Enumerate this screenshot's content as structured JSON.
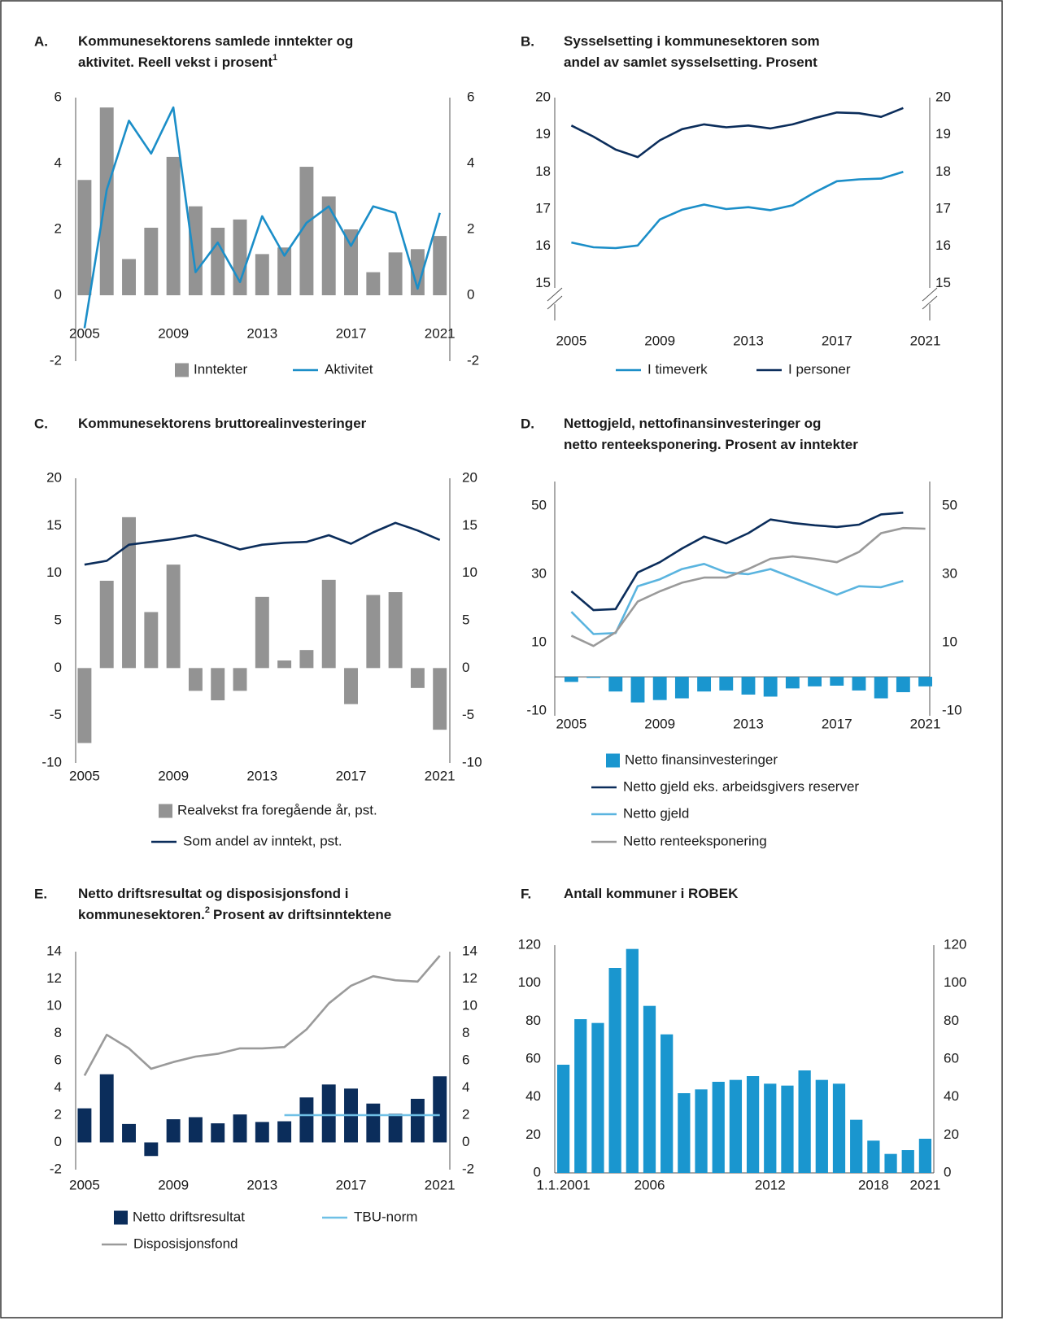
{
  "chart_data": [
    {
      "type": "combo",
      "panel": "A.",
      "title": [
        "Kommunesektorens samlede inntekter og",
        "aktivitet. Reell vekst i prosent"
      ],
      "title_sup": "1",
      "x": [
        2005,
        2006,
        2007,
        2008,
        2009,
        2010,
        2011,
        2012,
        2013,
        2014,
        2015,
        2016,
        2017,
        2018,
        2019,
        2020,
        2021
      ],
      "xlim": [
        2004.6,
        2021.45
      ],
      "xticks": [
        2005,
        2009,
        2013,
        2017,
        2021
      ],
      "ylim": [
        -2,
        6
      ],
      "yticks": [
        -2,
        0,
        2,
        4,
        6
      ],
      "series": [
        {
          "name": "Inntekter",
          "type": "bar",
          "color": "#939393",
          "values": [
            3.5,
            5.7,
            1.1,
            2.05,
            4.2,
            2.7,
            2.05,
            2.3,
            1.25,
            1.45,
            3.9,
            3.0,
            2.0,
            0.7,
            1.3,
            1.4,
            1.8
          ]
        },
        {
          "name": "Aktivitet",
          "type": "line",
          "color": "#1b8ec8",
          "values": [
            -1.0,
            3.2,
            5.3,
            4.3,
            5.7,
            0.7,
            1.6,
            0.4,
            2.4,
            1.2,
            2.2,
            2.7,
            1.5,
            2.7,
            2.5,
            0.2,
            2.5
          ]
        }
      ]
    },
    {
      "type": "line",
      "panel": "B.",
      "title": [
        "Sysselsetting i kommunesektoren som",
        "andel av samlet sysselsetting. Prosent"
      ],
      "x": [
        2005,
        2006,
        2007,
        2008,
        2009,
        2010,
        2011,
        2012,
        2013,
        2014,
        2015,
        2016,
        2017,
        2018,
        2019,
        2020
      ],
      "xlim": [
        2004.25,
        2021.2
      ],
      "xticks": [
        2005,
        2009,
        2013,
        2017,
        2021
      ],
      "ylim": [
        14,
        20
      ],
      "yticks": [
        15,
        16,
        17,
        18,
        19,
        20
      ],
      "axis_break": true,
      "series": [
        {
          "name": "I timeverk",
          "type": "line",
          "color": "#1b8ec8",
          "values": [
            16.1,
            15.97,
            15.95,
            16.02,
            16.72,
            16.98,
            17.12,
            17.0,
            17.05,
            16.97,
            17.1,
            17.45,
            17.75,
            17.8,
            17.82,
            18.0
          ]
        },
        {
          "name": "I personer",
          "type": "line",
          "color": "#0b2d5b",
          "values": [
            19.25,
            18.95,
            18.6,
            18.4,
            18.85,
            19.15,
            19.28,
            19.2,
            19.25,
            19.17,
            19.28,
            19.45,
            19.6,
            19.58,
            19.48,
            19.72
          ]
        }
      ]
    },
    {
      "type": "combo",
      "panel": "C.",
      "title": [
        "Kommunesektorens bruttorealinvesteringer"
      ],
      "x": [
        2005,
        2006,
        2007,
        2008,
        2009,
        2010,
        2011,
        2012,
        2013,
        2014,
        2015,
        2016,
        2017,
        2018,
        2019,
        2020,
        2021
      ],
      "xlim": [
        2004.6,
        2021.45
      ],
      "xticks": [
        2005,
        2009,
        2013,
        2017,
        2021
      ],
      "ylim": [
        -10,
        20
      ],
      "yticks": [
        -10,
        -5,
        0,
        5,
        10,
        15,
        20
      ],
      "series": [
        {
          "name": "Realvekst fra foregående år, pst.",
          "type": "bar",
          "color": "#939393",
          "values": [
            -7.9,
            9.2,
            15.9,
            5.9,
            10.9,
            -2.4,
            -3.4,
            -2.4,
            7.5,
            0.8,
            1.9,
            9.3,
            -3.8,
            7.7,
            8.0,
            -2.1,
            -6.5
          ]
        },
        {
          "name": "Som andel av inntekt, pst.",
          "type": "line",
          "color": "#0b2d5b",
          "values": [
            10.9,
            11.3,
            13.0,
            13.3,
            13.6,
            14.0,
            13.3,
            12.5,
            13.0,
            13.2,
            13.3,
            14.0,
            13.1,
            14.3,
            15.3,
            14.5,
            13.5
          ]
        }
      ]
    },
    {
      "type": "combo",
      "panel": "D.",
      "title": [
        "Nettogjeld, nettofinansinvesteringer og",
        "netto renteeksponering. Prosent av inntekter"
      ],
      "x": [
        2005,
        2006,
        2007,
        2008,
        2009,
        2010,
        2011,
        2012,
        2013,
        2014,
        2015,
        2016,
        2017,
        2018,
        2019,
        2020,
        2021
      ],
      "xlim": [
        2004.25,
        2021.2
      ],
      "xticks": [
        2005,
        2009,
        2013,
        2017,
        2021
      ],
      "ylim": [
        -11.4,
        57.1
      ],
      "yticks": [
        -10,
        10,
        30,
        50
      ],
      "zero_line": true,
      "series": [
        {
          "name": "Netto finansinvesteringer",
          "type": "bar",
          "color": "#1a96cf",
          "values": [
            -1.5,
            -0.3,
            -4.3,
            -7.5,
            -6.8,
            -6.3,
            -4.3,
            -4.0,
            -5.2,
            -5.8,
            -3.4,
            -2.8,
            -2.6,
            -4.0,
            -6.3,
            -4.5,
            -2.8
          ]
        },
        {
          "name": "Netto gjeld eks. arbeidsgivers reserver",
          "type": "line",
          "color": "#0b2d5b",
          "values": [
            25.0,
            19.5,
            19.8,
            30.5,
            33.5,
            37.5,
            41.0,
            39.0,
            42.0,
            46.0,
            45.0,
            44.3,
            43.8,
            44.5,
            47.5,
            48.0,
            null
          ]
        },
        {
          "name": "Netto gjeld",
          "type": "line",
          "color": "#5ab4df",
          "values": [
            19.0,
            12.5,
            12.8,
            26.5,
            28.5,
            31.5,
            33.0,
            30.5,
            30.0,
            31.5,
            29.0,
            26.5,
            24.0,
            26.5,
            26.2,
            28.0,
            null
          ]
        },
        {
          "name": "Netto renteeksponering",
          "type": "line",
          "color": "#9a9a9a",
          "values": [
            12.0,
            9.0,
            13.0,
            22.0,
            25.0,
            27.5,
            29.0,
            29.0,
            31.5,
            34.5,
            35.2,
            34.5,
            33.5,
            36.5,
            42.0,
            43.5,
            43.3
          ]
        }
      ]
    },
    {
      "type": "combo",
      "panel": "E.",
      "title": [
        "Netto driftsresultat og disposisjonsfond i",
        "kommunesektoren."
      ],
      "title_sup": "2",
      "title_tail": "Prosent av driftsinntektene",
      "x": [
        2005,
        2006,
        2007,
        2008,
        2009,
        2010,
        2011,
        2012,
        2013,
        2014,
        2015,
        2016,
        2017,
        2018,
        2019,
        2020,
        2021
      ],
      "xlim": [
        2004.6,
        2021.45
      ],
      "xticks": [
        2005,
        2009,
        2013,
        2017,
        2021
      ],
      "ylim": [
        -2,
        14
      ],
      "yticks": [
        -2,
        0,
        2,
        4,
        6,
        8,
        10,
        12,
        14
      ],
      "series": [
        {
          "name": "Netto driftsresultat",
          "type": "bar",
          "color": "#0b2d5b",
          "values": [
            2.5,
            5.0,
            1.35,
            -1.0,
            1.7,
            1.85,
            1.4,
            2.05,
            1.5,
            1.55,
            3.3,
            4.25,
            3.95,
            2.85,
            2.1,
            3.2,
            4.85
          ]
        },
        {
          "name": "TBU-norm",
          "type": "line",
          "color": "#6fc0e6",
          "values": [
            null,
            null,
            null,
            null,
            null,
            null,
            null,
            null,
            null,
            2,
            2,
            2,
            2,
            2,
            2,
            2,
            2
          ]
        },
        {
          "name": "Disposisjonsfond",
          "type": "line",
          "color": "#9a9a9a",
          "values": [
            4.9,
            7.9,
            6.9,
            5.4,
            5.9,
            6.3,
            6.5,
            6.9,
            6.9,
            7.0,
            8.3,
            10.2,
            11.5,
            12.2,
            11.9,
            11.8,
            13.7
          ]
        }
      ]
    },
    {
      "type": "bar",
      "panel": "F.",
      "title": [
        "Antall kommuner i ROBEK"
      ],
      "categories": [
        "1.1.2001",
        null,
        null,
        null,
        null,
        "2006",
        null,
        null,
        null,
        null,
        null,
        null,
        "2012",
        null,
        null,
        null,
        null,
        null,
        "2018",
        null,
        null,
        "2021"
      ],
      "values": [
        57,
        81,
        79,
        108,
        118,
        88,
        73,
        42,
        44,
        48,
        49,
        51,
        47,
        46,
        54,
        49,
        47,
        28,
        17,
        10,
        12,
        18
      ],
      "color": "#1a96cf",
      "zero_line": true,
      "ylim": [
        0,
        120
      ],
      "yticks": [
        0,
        20,
        40,
        60,
        80,
        100,
        120
      ]
    }
  ]
}
